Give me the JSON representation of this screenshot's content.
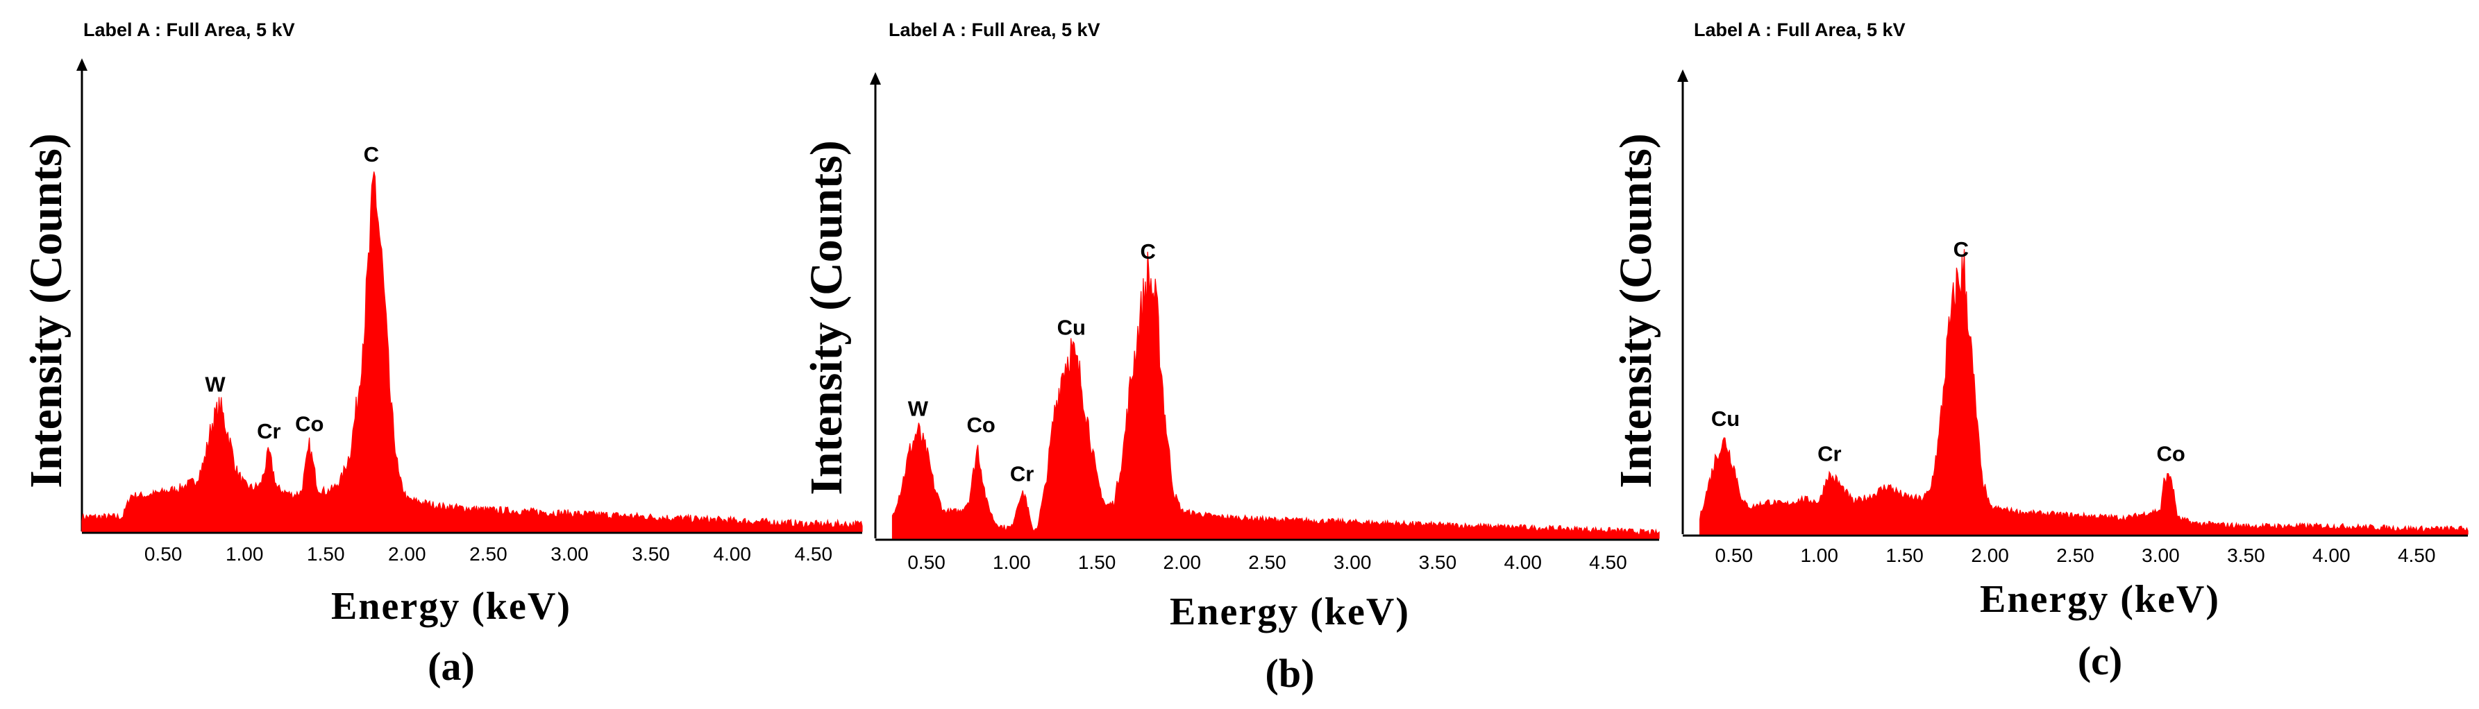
{
  "figure": {
    "panels": [
      {
        "header": "Label A : Full Area, 5 kV",
        "ylabel": "Intensity (Counts)",
        "xlabel": "Energy (keV)",
        "caption": "(a)"
      },
      {
        "header": "Label A : Full Area, 5 kV",
        "ylabel": "Intensity (Counts)",
        "xlabel": "Energy (keV)",
        "caption": "(b)"
      },
      {
        "header": "Label A : Full Area, 5 kV",
        "ylabel": "Intensity (Counts)",
        "xlabel": "Energy (keV)",
        "caption": "(c)"
      }
    ]
  },
  "chart_data": [
    {
      "type": "area",
      "title": "Label A : Full Area, 5 kV",
      "xlabel": "Energy (keV)",
      "ylabel": "Intensity (Counts)",
      "caption": "(a)",
      "color": "#ff0000",
      "xlim": [
        0.0,
        4.8
      ],
      "ylim": [
        0,
        100
      ],
      "x_ticks": [
        "0.50",
        "1.00",
        "1.50",
        "2.00",
        "2.50",
        "3.00",
        "3.50",
        "4.00",
        "4.50"
      ],
      "y_ticks": [],
      "grid": false,
      "x": [
        0.0,
        0.25,
        0.3,
        0.4,
        0.5,
        0.6,
        0.7,
        0.75,
        0.8,
        0.85,
        0.9,
        0.95,
        1.0,
        1.05,
        1.1,
        1.15,
        1.2,
        1.25,
        1.3,
        1.35,
        1.4,
        1.45,
        1.5,
        1.55,
        1.6,
        1.65,
        1.7,
        1.75,
        1.8,
        1.85,
        1.9,
        1.95,
        2.0,
        2.2,
        2.5,
        3.0,
        3.5,
        4.0,
        4.5,
        4.8
      ],
      "values": [
        4,
        4,
        10,
        10,
        11,
        12,
        14,
        19,
        30,
        35,
        27,
        17,
        13,
        12,
        13,
        22,
        12,
        11,
        10,
        11,
        24,
        12,
        11,
        12,
        15,
        22,
        38,
        65,
        99,
        72,
        35,
        15,
        9,
        7,
        6,
        5,
        4,
        3,
        2,
        2
      ],
      "peak_labels": [
        {
          "text": "W",
          "x": 0.82,
          "y": 35
        },
        {
          "text": "Cr",
          "x": 1.15,
          "y": 22
        },
        {
          "text": "Co",
          "x": 1.4,
          "y": 24
        },
        {
          "text": "C",
          "x": 1.78,
          "y": 99
        }
      ]
    },
    {
      "type": "area",
      "title": "Label A : Full Area, 5 kV",
      "xlabel": "Energy (keV)",
      "ylabel": "Intensity (Counts)",
      "caption": "(b)",
      "color": "#ff0000",
      "xlim": [
        0.2,
        4.8
      ],
      "ylim": [
        0,
        100
      ],
      "x_ticks": [
        "0.50",
        "1.00",
        "1.50",
        "2.00",
        "2.50",
        "3.00",
        "3.50",
        "4.00",
        "4.50"
      ],
      "y_ticks": [],
      "grid": false,
      "x": [
        0.3,
        0.35,
        0.4,
        0.45,
        0.5,
        0.55,
        0.6,
        0.7,
        0.75,
        0.8,
        0.85,
        0.9,
        0.95,
        1.0,
        1.05,
        1.08,
        1.12,
        1.15,
        1.2,
        1.25,
        1.3,
        1.35,
        1.4,
        1.45,
        1.5,
        1.55,
        1.6,
        1.65,
        1.7,
        1.75,
        1.8,
        1.85,
        1.9,
        1.95,
        2.0,
        2.2,
        2.5,
        3.0,
        3.5,
        4.0,
        4.5,
        4.8
      ],
      "values": [
        8,
        18,
        32,
        40,
        32,
        18,
        10,
        10,
        14,
        34,
        14,
        6,
        4,
        4,
        16,
        16,
        3,
        4,
        20,
        46,
        62,
        70,
        60,
        42,
        22,
        12,
        13,
        30,
        58,
        80,
        98,
        85,
        45,
        17,
        10,
        8,
        7,
        6,
        5,
        4,
        3,
        2
      ],
      "peak_labels": [
        {
          "text": "W",
          "x": 0.45,
          "y": 40
        },
        {
          "text": "Co",
          "x": 0.82,
          "y": 34
        },
        {
          "text": "Cr",
          "x": 1.06,
          "y": 16
        },
        {
          "text": "Cu",
          "x": 1.35,
          "y": 70
        },
        {
          "text": "C",
          "x": 1.8,
          "y": 98
        }
      ]
    },
    {
      "type": "area",
      "title": "Label A : Full Area, 5 kV",
      "xlabel": "Energy (keV)",
      "ylabel": "Intensity (Counts)",
      "caption": "(c)",
      "color": "#ff0000",
      "xlim": [
        0.2,
        4.8
      ],
      "ylim": [
        0,
        100
      ],
      "x_ticks": [
        "0.50",
        "1.00",
        "1.50",
        "2.00",
        "2.50",
        "3.00",
        "3.50",
        "4.00",
        "4.50"
      ],
      "y_ticks": [],
      "grid": false,
      "x": [
        0.3,
        0.35,
        0.4,
        0.45,
        0.5,
        0.55,
        0.6,
        0.7,
        0.8,
        0.9,
        1.0,
        1.05,
        1.1,
        1.2,
        1.3,
        1.4,
        1.5,
        1.6,
        1.65,
        1.7,
        1.75,
        1.8,
        1.85,
        1.9,
        1.95,
        2.0,
        2.2,
        2.5,
        2.8,
        3.0,
        3.02,
        3.06,
        3.1,
        3.2,
        3.5,
        4.0,
        4.5,
        4.8
      ],
      "values": [
        6,
        18,
        30,
        35,
        25,
        12,
        10,
        12,
        11,
        13,
        12,
        22,
        20,
        12,
        14,
        18,
        14,
        13,
        16,
        35,
        70,
        92,
        98,
        60,
        22,
        10,
        8,
        7,
        6,
        9,
        20,
        22,
        6,
        4,
        3,
        3,
        2,
        2
      ],
      "peak_labels": [
        {
          "text": "Cu",
          "x": 0.45,
          "y": 35
        },
        {
          "text": "Cr",
          "x": 1.06,
          "y": 22
        },
        {
          "text": "C",
          "x": 1.83,
          "y": 98
        },
        {
          "text": "Co",
          "x": 3.06,
          "y": 22
        }
      ]
    }
  ]
}
